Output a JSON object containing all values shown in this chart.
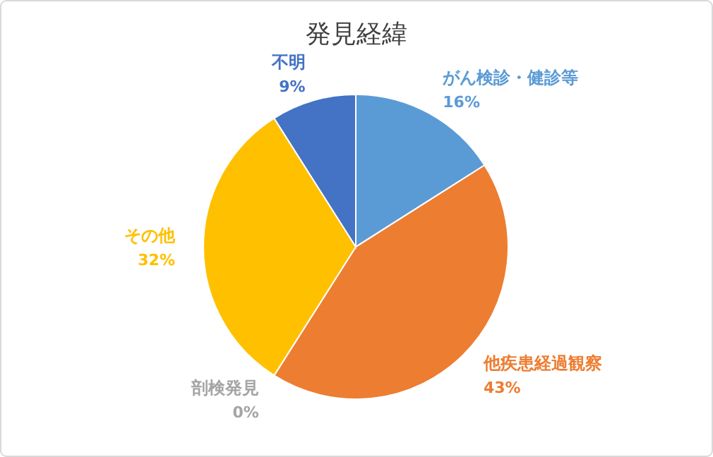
{
  "chart_data": {
    "type": "pie",
    "title": "発見経緯",
    "categories": [
      "がん検診・健診等",
      "他疾患経過観察",
      "剖検発見",
      "その他",
      "不明"
    ],
    "values": [
      16,
      43,
      0,
      32,
      9
    ],
    "colors": [
      "#5b9bd5",
      "#ed7d31",
      "#a5a5a5",
      "#ffc000",
      "#4472c4"
    ],
    "value_labels": [
      "16%",
      "43%",
      "0%",
      "32%",
      "9%"
    ],
    "legend": false
  }
}
